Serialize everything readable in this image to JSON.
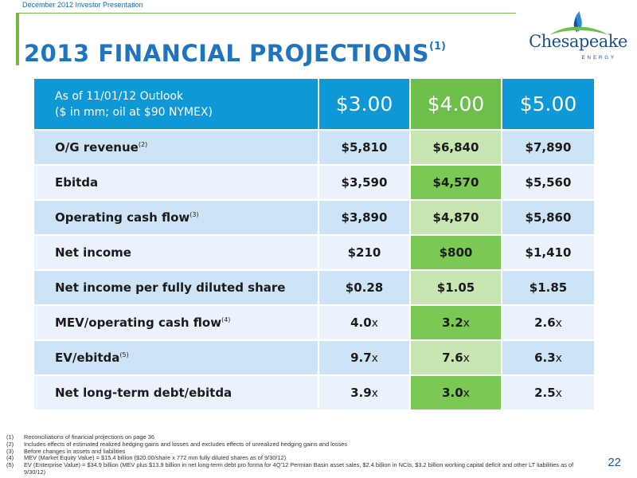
{
  "header": {
    "presentation_label": "December 2012 Investor Presentation",
    "title": "2013 FINANCIAL PROJECTIONS",
    "title_note": "(1)"
  },
  "logo": {
    "wordmark": "Chesapeake",
    "subtitle": "ENERGY",
    "icon": "flame-logo-icon",
    "colors": {
      "flame": "#2a8bd0",
      "arc": "#6dbf4b",
      "text": "#1f4f8f"
    }
  },
  "table": {
    "header": {
      "line1": "As of 11/01/12 Outlook",
      "line2": "($ in mm; oil at $90 NYMEX)",
      "prices": [
        "$3.00",
        "$4.00",
        "$5.00"
      ]
    },
    "rows": [
      {
        "label": "O/G revenue",
        "note": "(2)",
        "values": [
          "$5,810",
          "$6,840",
          "$7,890"
        ]
      },
      {
        "label": "Ebitda",
        "note": "",
        "values": [
          "$3,590",
          "$4,570",
          "$5,560"
        ]
      },
      {
        "label": "Operating cash flow",
        "note": "(3)",
        "values": [
          "$3,890",
          "$4,870",
          "$5,860"
        ]
      },
      {
        "label": "Net income",
        "note": "",
        "values": [
          "$210",
          "$800",
          "$1,410"
        ]
      },
      {
        "label": "Net income per fully diluted share",
        "note": "",
        "values": [
          "$0.28",
          "$1.05",
          "$1.85"
        ]
      },
      {
        "label": "MEV/operating cash flow",
        "note": "(4)",
        "values": [
          "4.0",
          "3.2",
          "2.6"
        ],
        "suffix": "x"
      },
      {
        "label": "EV/ebitda",
        "note": "(5)",
        "values": [
          "9.7",
          "7.6",
          "6.3"
        ],
        "suffix": "x"
      },
      {
        "label": "Net long-term debt/ebitda",
        "note": "",
        "values": [
          "3.9",
          "3.0",
          "2.5"
        ],
        "suffix": "x"
      }
    ],
    "colors": {
      "header_blue": "#0f98d8",
      "header_green": "#6dbf4b",
      "row_blue_dark": "#cde4f6",
      "row_blue_light": "#eaf3fb",
      "row_green_light": "#c8e6b2",
      "row_green_dark": "#7cc854"
    }
  },
  "footnotes": [
    {
      "num": "(1)",
      "text": "Reconciliations of financial projections on page 36"
    },
    {
      "num": "(2)",
      "text": "Includes effects of estimated realized hedging gains and losses and excludes effects of unrealized hedging gains and losses"
    },
    {
      "num": "(3)",
      "text": "Before changes in assets and liabilities"
    },
    {
      "num": "(4)",
      "text": "MEV (Market Equity Value) = $15.4 billion ($20.00/share x 772 mm fully diluted shares as of 9/30/12)"
    },
    {
      "num": "(5)",
      "text": "EV (Enterprise Value) = $34.9 billion (MEV plus $13.9 billion in net long-term debt pro forma for 4Q'12 Permian Basin asset sales, $2.4 billion in NCIs, $3.2 billion working capital deficit and other LT liabilities as of 9/30/12)"
    }
  ],
  "page_number": "22"
}
